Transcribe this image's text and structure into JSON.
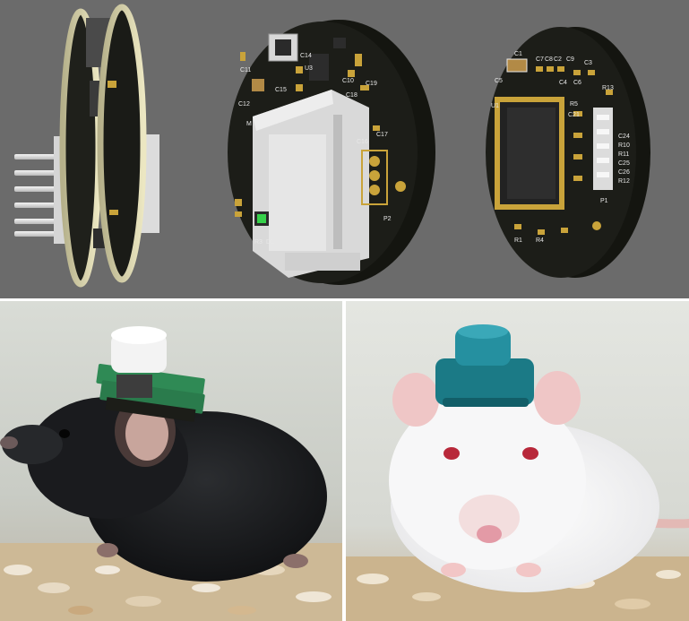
{
  "panels": {
    "top": {
      "description_kind": "3d-render",
      "boards": [
        {
          "name": "side-view",
          "labels": []
        },
        {
          "name": "power-board",
          "labels": {
            "l2": "L2",
            "c14": "C14",
            "c15": "C15",
            "u3": "U3",
            "c11": "C11",
            "c12": "C12",
            "c10": "C10",
            "c18": "C18",
            "c19": "C19",
            "c16": "C16",
            "c17": "C17",
            "m": "M",
            "p2": "P2",
            "r3": "R3",
            "d1": "D1"
          }
        },
        {
          "name": "mcu-board",
          "labels": {
            "c1": "C1",
            "c7": "C7",
            "c8": "C8",
            "c2": "C2",
            "c9": "C9",
            "c3": "C3",
            "c5": "C5",
            "c4": "C4",
            "c6": "C6",
            "r13": "R13",
            "u1": "U1",
            "r5": "R5",
            "c21": "C21",
            "c24": "C24",
            "r10": "R10",
            "r11": "R11",
            "c25": "C25",
            "c26": "C26",
            "r12": "R12",
            "p1": "P1",
            "r1": "R1",
            "r4": "R4"
          }
        }
      ]
    },
    "bottom_left": {
      "subject": "black-mouse-with-green-headstage"
    },
    "bottom_right": {
      "subject": "white-rat-with-blue-headstage"
    }
  },
  "colors": {
    "render_background": "#6b6b6b",
    "pcb": "#1c1d18",
    "board_edge": "#d9d4ad",
    "pad_gold": "#c9a33a",
    "connector_white": "#dedede",
    "led_green": "#36d14a",
    "headstage_green": "#2f8a55",
    "headstage_blue": "#1b7a86"
  }
}
